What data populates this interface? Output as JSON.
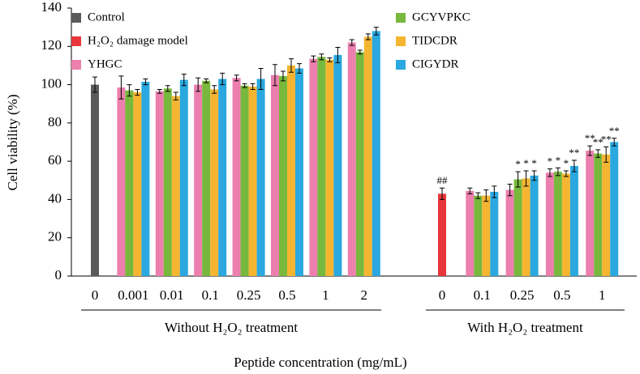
{
  "chart_data": {
    "type": "bar",
    "ylabel": "Cell viability (%)",
    "xlabel": "Peptide concentration (mg/mL)",
    "ylim": [
      0,
      140
    ],
    "yticks": [
      0,
      20,
      40,
      60,
      80,
      100,
      120,
      140
    ],
    "groups": [
      {
        "label": "Without H₂O₂ treatment",
        "categories": [
          "0",
          "0.001",
          "0.01",
          "0.1",
          "0.25",
          "0.5",
          "1",
          "2"
        ]
      },
      {
        "label": "With H₂O₂ treatment",
        "categories": [
          "0",
          "0.1",
          "0.25",
          "0.5",
          "1"
        ]
      }
    ],
    "series": [
      {
        "name": "Control",
        "color": "#5a5a5a",
        "values": [
          100,
          null,
          null,
          null,
          null,
          null,
          null,
          null,
          null,
          null,
          null,
          null,
          null
        ],
        "errors": [
          4,
          null,
          null,
          null,
          null,
          null,
          null,
          null,
          null,
          null,
          null,
          null,
          null
        ],
        "significance": [
          null,
          null,
          null,
          null,
          null,
          null,
          null,
          null,
          null,
          null,
          null,
          null,
          null
        ]
      },
      {
        "name": "H₂O₂ damage model",
        "color": "#e8363a",
        "values": [
          null,
          null,
          null,
          null,
          null,
          null,
          null,
          null,
          43,
          null,
          null,
          null,
          null
        ],
        "errors": [
          null,
          null,
          null,
          null,
          null,
          null,
          null,
          null,
          3,
          null,
          null,
          null,
          null
        ],
        "significance": [
          null,
          null,
          null,
          null,
          null,
          null,
          null,
          null,
          "##",
          null,
          null,
          null,
          null
        ]
      },
      {
        "name": "YHGC",
        "color": "#ec7fae",
        "values": [
          null,
          98.5,
          96.5,
          100,
          103.5,
          105,
          113.5,
          122,
          null,
          44.5,
          45,
          54,
          65.5
        ],
        "errors": [
          null,
          6,
          1,
          3.5,
          1.5,
          5.5,
          1.5,
          1.5,
          null,
          1.5,
          3,
          2,
          2.5
        ],
        "significance": [
          null,
          null,
          null,
          null,
          null,
          null,
          null,
          null,
          null,
          null,
          null,
          "*",
          "**"
        ]
      },
      {
        "name": "GCYVPKC",
        "color": "#78b83c",
        "values": [
          null,
          97,
          98,
          102,
          99.5,
          104.5,
          114.5,
          117,
          null,
          42,
          50.5,
          54.5,
          64
        ],
        "errors": [
          null,
          3,
          1.5,
          1,
          1,
          2.5,
          1.5,
          1,
          null,
          1.5,
          4,
          2,
          2
        ],
        "significance": [
          null,
          null,
          null,
          null,
          null,
          null,
          null,
          null,
          null,
          null,
          "*",
          "*",
          "**"
        ]
      },
      {
        "name": "TIDCDR",
        "color": "#f5b531",
        "values": [
          null,
          96,
          94,
          97.5,
          99,
          110,
          113,
          125,
          null,
          42,
          51,
          53.5,
          63.5
        ],
        "errors": [
          null,
          1.5,
          2,
          2,
          1.5,
          3.5,
          1,
          1.5,
          null,
          3,
          4,
          1.5,
          4
        ],
        "significance": [
          null,
          null,
          null,
          null,
          null,
          null,
          null,
          null,
          null,
          null,
          "*",
          "*",
          "**"
        ]
      },
      {
        "name": "CIGYDR",
        "color": "#2aa8df",
        "values": [
          null,
          101.5,
          102.5,
          103,
          103,
          108.5,
          115.5,
          128,
          null,
          44,
          52.5,
          57.5,
          70
        ],
        "errors": [
          null,
          1.5,
          3,
          3,
          5.5,
          2.5,
          4,
          2,
          null,
          3,
          2.5,
          3,
          2
        ],
        "significance": [
          null,
          null,
          null,
          null,
          null,
          null,
          null,
          null,
          null,
          null,
          "*",
          "**",
          "**"
        ]
      }
    ]
  }
}
